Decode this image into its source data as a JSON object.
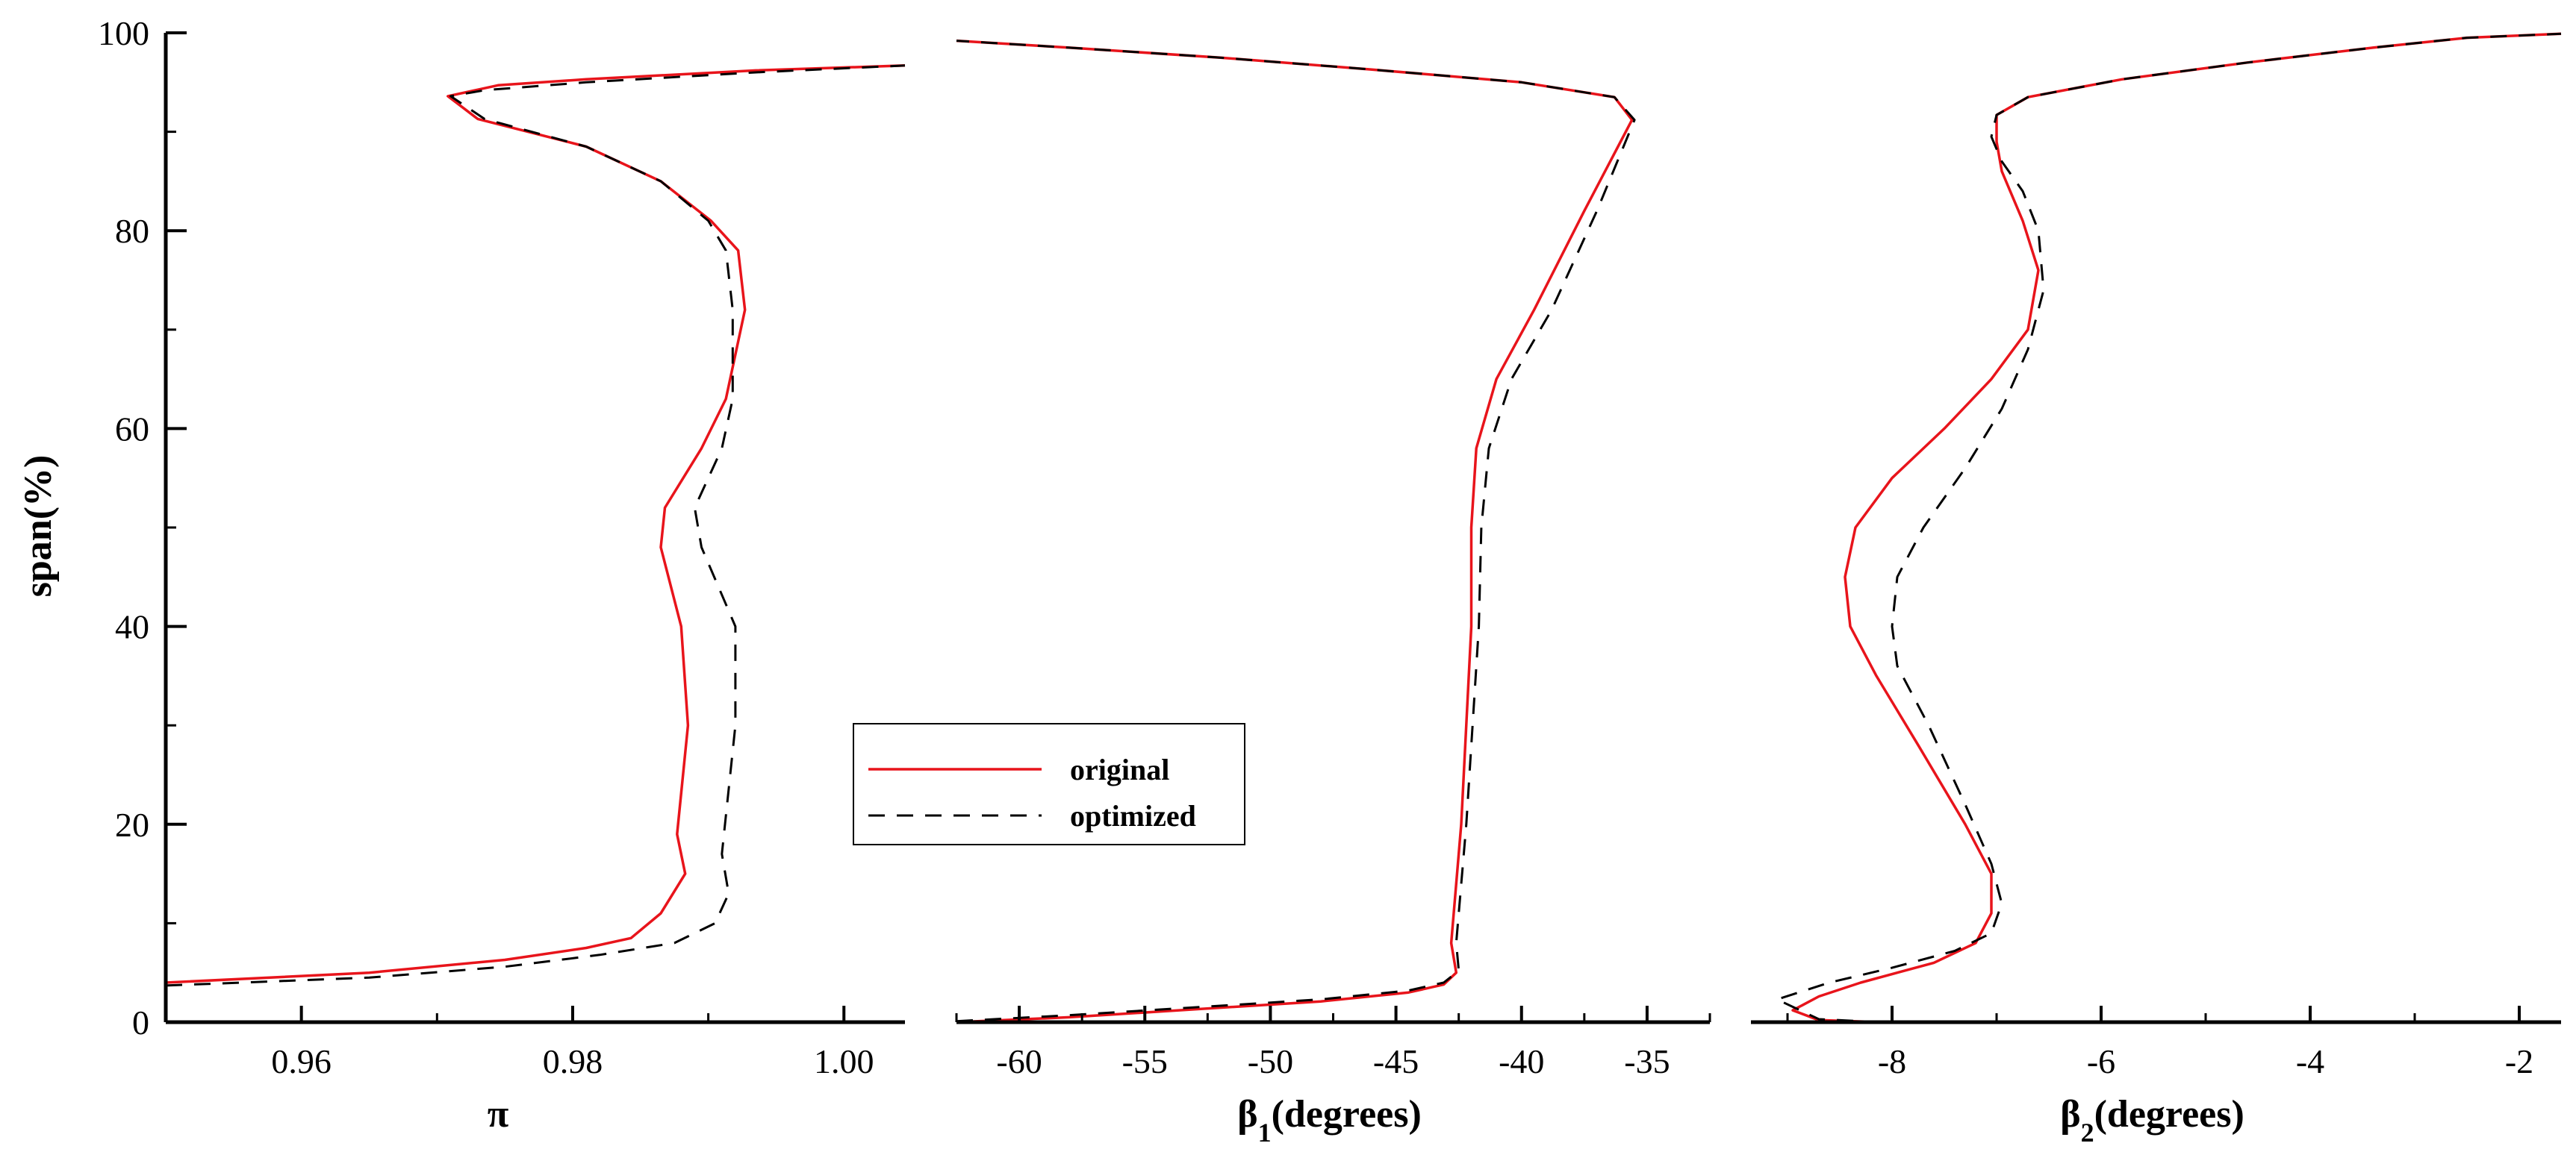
{
  "chart_data": {
    "type": "line",
    "shared_y": {
      "label": "span(%)",
      "range": [
        0,
        100
      ],
      "ticks": [
        0,
        20,
        40,
        60,
        80,
        100
      ],
      "tick_labels": [
        "0",
        "20",
        "40",
        "60",
        "80",
        "100"
      ]
    },
    "legend": {
      "placement": "bottom-left of middle panel",
      "entries": [
        {
          "name": "original",
          "color": "#e8141b",
          "style": "solid"
        },
        {
          "name": "optimized",
          "color": "#000000",
          "style": "dashed"
        }
      ]
    },
    "panels": [
      {
        "id": "pi",
        "xlabel_main": "π",
        "xlabel_sub": "",
        "xlabel_rest": "",
        "xlim": [
          0.95,
          1.0045
        ],
        "x_ticks": [
          0.96,
          0.98,
          1.0
        ],
        "x_tick_labels": [
          "0.96",
          "0.98",
          "1.00"
        ],
        "series": [
          {
            "name": "original",
            "points": [
              [
                0.95,
                4.0
              ],
              [
                0.965,
                5.0
              ],
              [
                0.975,
                6.3
              ],
              [
                0.981,
                7.5
              ],
              [
                0.9843,
                8.5
              ],
              [
                0.9865,
                11
              ],
              [
                0.9883,
                15
              ],
              [
                0.9877,
                19
              ],
              [
                0.9885,
                30
              ],
              [
                0.988,
                40
              ],
              [
                0.9865,
                48
              ],
              [
                0.9868,
                52
              ],
              [
                0.9895,
                58
              ],
              [
                0.9913,
                63
              ],
              [
                0.9927,
                72
              ],
              [
                0.9922,
                78
              ],
              [
                0.9902,
                81
              ],
              [
                0.9865,
                85
              ],
              [
                0.981,
                88.5
              ],
              [
                0.973,
                91.3
              ],
              [
                0.9708,
                93.6
              ],
              [
                0.9745,
                94.7
              ],
              [
                0.981,
                95.3
              ],
              [
                0.9935,
                96.2
              ],
              [
                1.0045,
                96.7
              ]
            ]
          },
          {
            "name": "optimized",
            "points": [
              [
                0.95,
                3.7
              ],
              [
                0.965,
                4.5
              ],
              [
                0.975,
                5.6
              ],
              [
                0.982,
                6.8
              ],
              [
                0.9875,
                8.0
              ],
              [
                0.9905,
                10.0
              ],
              [
                0.9915,
                13
              ],
              [
                0.991,
                17
              ],
              [
                0.992,
                30
              ],
              [
                0.992,
                40
              ],
              [
                0.9895,
                48
              ],
              [
                0.989,
                52
              ],
              [
                0.991,
                58
              ],
              [
                0.9918,
                63
              ],
              [
                0.9918,
                72
              ],
              [
                0.9913,
                78
              ],
              [
                0.99,
                81
              ],
              [
                0.9865,
                85
              ],
              [
                0.981,
                88.5
              ],
              [
                0.9735,
                91.3
              ],
              [
                0.971,
                93.6
              ],
              [
                0.9735,
                94.2
              ],
              [
                0.981,
                95.0
              ],
              [
                0.9935,
                96.0
              ],
              [
                1.0045,
                96.7
              ]
            ]
          }
        ]
      },
      {
        "id": "beta1",
        "xlabel_main": "β",
        "xlabel_sub": "1",
        "xlabel_rest": "(degrees)",
        "xlim": [
          -62.5,
          -32.5
        ],
        "x_ticks": [
          -60,
          -55,
          -50,
          -45,
          -40,
          -35
        ],
        "x_tick_labels": [
          "-60",
          "-55",
          "-50",
          "-45",
          "-40",
          "-35"
        ],
        "series": [
          {
            "name": "original",
            "points": [
              [
                -62.5,
                0.0
              ],
              [
                -58.0,
                0.5
              ],
              [
                -53.0,
                1.3
              ],
              [
                -48.0,
                2.1
              ],
              [
                -44.5,
                3.0
              ],
              [
                -43.1,
                3.8
              ],
              [
                -42.6,
                5.0
              ],
              [
                -42.8,
                8.0
              ],
              [
                -42.4,
                20
              ],
              [
                -42.0,
                40
              ],
              [
                -42.0,
                50
              ],
              [
                -41.8,
                58
              ],
              [
                -41.0,
                65
              ],
              [
                -39.5,
                72
              ],
              [
                -37.5,
                82
              ],
              [
                -35.6,
                91.2
              ],
              [
                -36.3,
                93.5
              ],
              [
                -40.0,
                95.0
              ],
              [
                -46.0,
                96.3
              ],
              [
                -52.0,
                97.5
              ],
              [
                -58.0,
                98.5
              ],
              [
                -62.5,
                99.2
              ]
            ]
          },
          {
            "name": "optimized",
            "points": [
              [
                -62.5,
                0.1
              ],
              [
                -58.0,
                0.7
              ],
              [
                -53.0,
                1.5
              ],
              [
                -48.0,
                2.3
              ],
              [
                -44.5,
                3.2
              ],
              [
                -43.1,
                4.0
              ],
              [
                -42.5,
                5.2
              ],
              [
                -42.6,
                8.0
              ],
              [
                -42.2,
                20
              ],
              [
                -41.7,
                40
              ],
              [
                -41.6,
                50
              ],
              [
                -41.3,
                58
              ],
              [
                -40.4,
                65
              ],
              [
                -38.8,
                72
              ],
              [
                -37.0,
                82
              ],
              [
                -35.5,
                91.2
              ],
              [
                -36.3,
                93.5
              ],
              [
                -40.0,
                95.0
              ],
              [
                -46.0,
                96.3
              ],
              [
                -52.0,
                97.5
              ],
              [
                -58.0,
                98.5
              ],
              [
                -62.5,
                99.2
              ]
            ]
          }
        ]
      },
      {
        "id": "beta2",
        "xlabel_main": "β",
        "xlabel_sub": "2",
        "xlabel_rest": "(degrees)",
        "xlim": [
          -9.35,
          -1.6
        ],
        "x_ticks": [
          -8,
          -6,
          -4,
          -2
        ],
        "x_tick_labels": [
          "-8",
          "-6",
          "-4",
          "-2"
        ],
        "series": [
          {
            "name": "original",
            "points": [
              [
                -8.1,
                0.0
              ],
              [
                -8.7,
                0.2
              ],
              [
                -8.95,
                1.2
              ],
              [
                -8.7,
                2.6
              ],
              [
                -8.3,
                4.0
              ],
              [
                -7.6,
                6.0
              ],
              [
                -7.2,
                8.0
              ],
              [
                -7.05,
                11
              ],
              [
                -7.05,
                15
              ],
              [
                -7.3,
                20
              ],
              [
                -7.75,
                28
              ],
              [
                -8.15,
                35
              ],
              [
                -8.4,
                40
              ],
              [
                -8.45,
                45
              ],
              [
                -8.35,
                50
              ],
              [
                -8.0,
                55
              ],
              [
                -7.5,
                60
              ],
              [
                -7.05,
                65
              ],
              [
                -6.7,
                70
              ],
              [
                -6.6,
                76
              ],
              [
                -6.75,
                81
              ],
              [
                -6.95,
                86
              ],
              [
                -7.0,
                89
              ],
              [
                -7.0,
                91.7
              ],
              [
                -6.7,
                93.5
              ],
              [
                -5.8,
                95.3
              ],
              [
                -4.6,
                97.0
              ],
              [
                -3.4,
                98.5
              ],
              [
                -2.5,
                99.5
              ],
              [
                -1.6,
                99.9
              ]
            ]
          },
          {
            "name": "optimized",
            "points": [
              [
                -8.1,
                0.0
              ],
              [
                -8.7,
                0.3
              ],
              [
                -9.1,
                2.3
              ],
              [
                -8.6,
                4.0
              ],
              [
                -8.0,
                5.5
              ],
              [
                -7.4,
                7.2
              ],
              [
                -7.05,
                9
              ],
              [
                -6.95,
                12
              ],
              [
                -7.05,
                16
              ],
              [
                -7.3,
                22
              ],
              [
                -7.65,
                30
              ],
              [
                -7.95,
                36
              ],
              [
                -8.0,
                40
              ],
              [
                -7.95,
                45
              ],
              [
                -7.7,
                50
              ],
              [
                -7.3,
                56
              ],
              [
                -6.95,
                62
              ],
              [
                -6.7,
                68
              ],
              [
                -6.55,
                74
              ],
              [
                -6.6,
                80
              ],
              [
                -6.75,
                84
              ],
              [
                -6.95,
                87
              ],
              [
                -7.05,
                89.5
              ],
              [
                -7.0,
                91.7
              ],
              [
                -6.7,
                93.5
              ],
              [
                -5.8,
                95.3
              ],
              [
                -4.6,
                97.0
              ],
              [
                -3.4,
                98.5
              ],
              [
                -2.5,
                99.5
              ],
              [
                -1.6,
                99.9
              ]
            ]
          }
        ]
      }
    ]
  }
}
